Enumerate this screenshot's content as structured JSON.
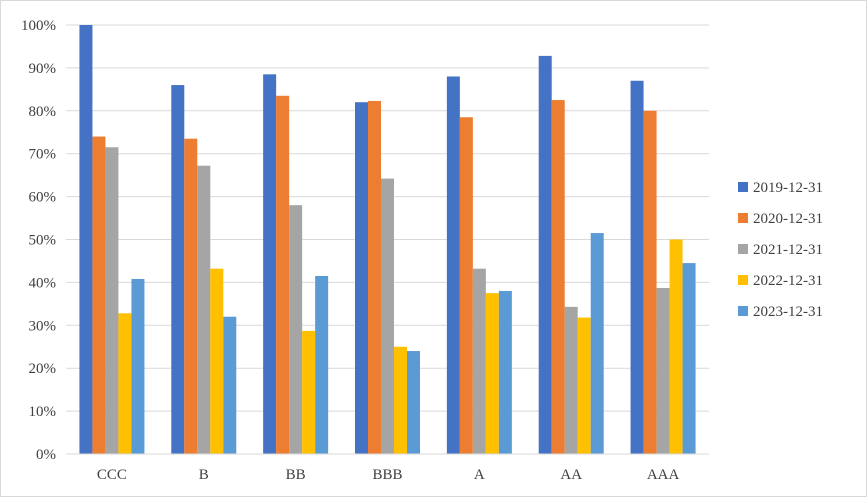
{
  "chart_data": {
    "type": "bar",
    "categories": [
      "CCC",
      "B",
      "BB",
      "BBB",
      "A",
      "AA",
      "AAA"
    ],
    "series": [
      {
        "name": "2019-12-31",
        "color": "#4472c4",
        "values": [
          100,
          86,
          88.5,
          82,
          88,
          92.8,
          87
        ]
      },
      {
        "name": "2020-12-31",
        "color": "#ed7d31",
        "values": [
          74,
          73.5,
          83.5,
          82.3,
          78.5,
          82.5,
          80
        ]
      },
      {
        "name": "2021-12-31",
        "color": "#a5a5a5",
        "values": [
          71.5,
          67.2,
          58,
          64.2,
          43.2,
          34.3,
          38.7
        ]
      },
      {
        "name": "2022-12-31",
        "color": "#ffc000",
        "values": [
          32.8,
          43.2,
          28.7,
          25,
          37.5,
          31.8,
          50
        ]
      },
      {
        "name": "2023-12-31",
        "color": "#5b9bd5",
        "values": [
          40.8,
          32,
          41.5,
          24,
          38,
          51.5,
          44.5
        ]
      }
    ],
    "y_ticks": [
      "0%",
      "10%",
      "20%",
      "30%",
      "40%",
      "50%",
      "60%",
      "70%",
      "80%",
      "90%",
      "100%"
    ],
    "ylim": [
      0,
      100
    ],
    "grid": true,
    "legend": "right",
    "title": "",
    "xlabel": "",
    "ylabel": ""
  }
}
